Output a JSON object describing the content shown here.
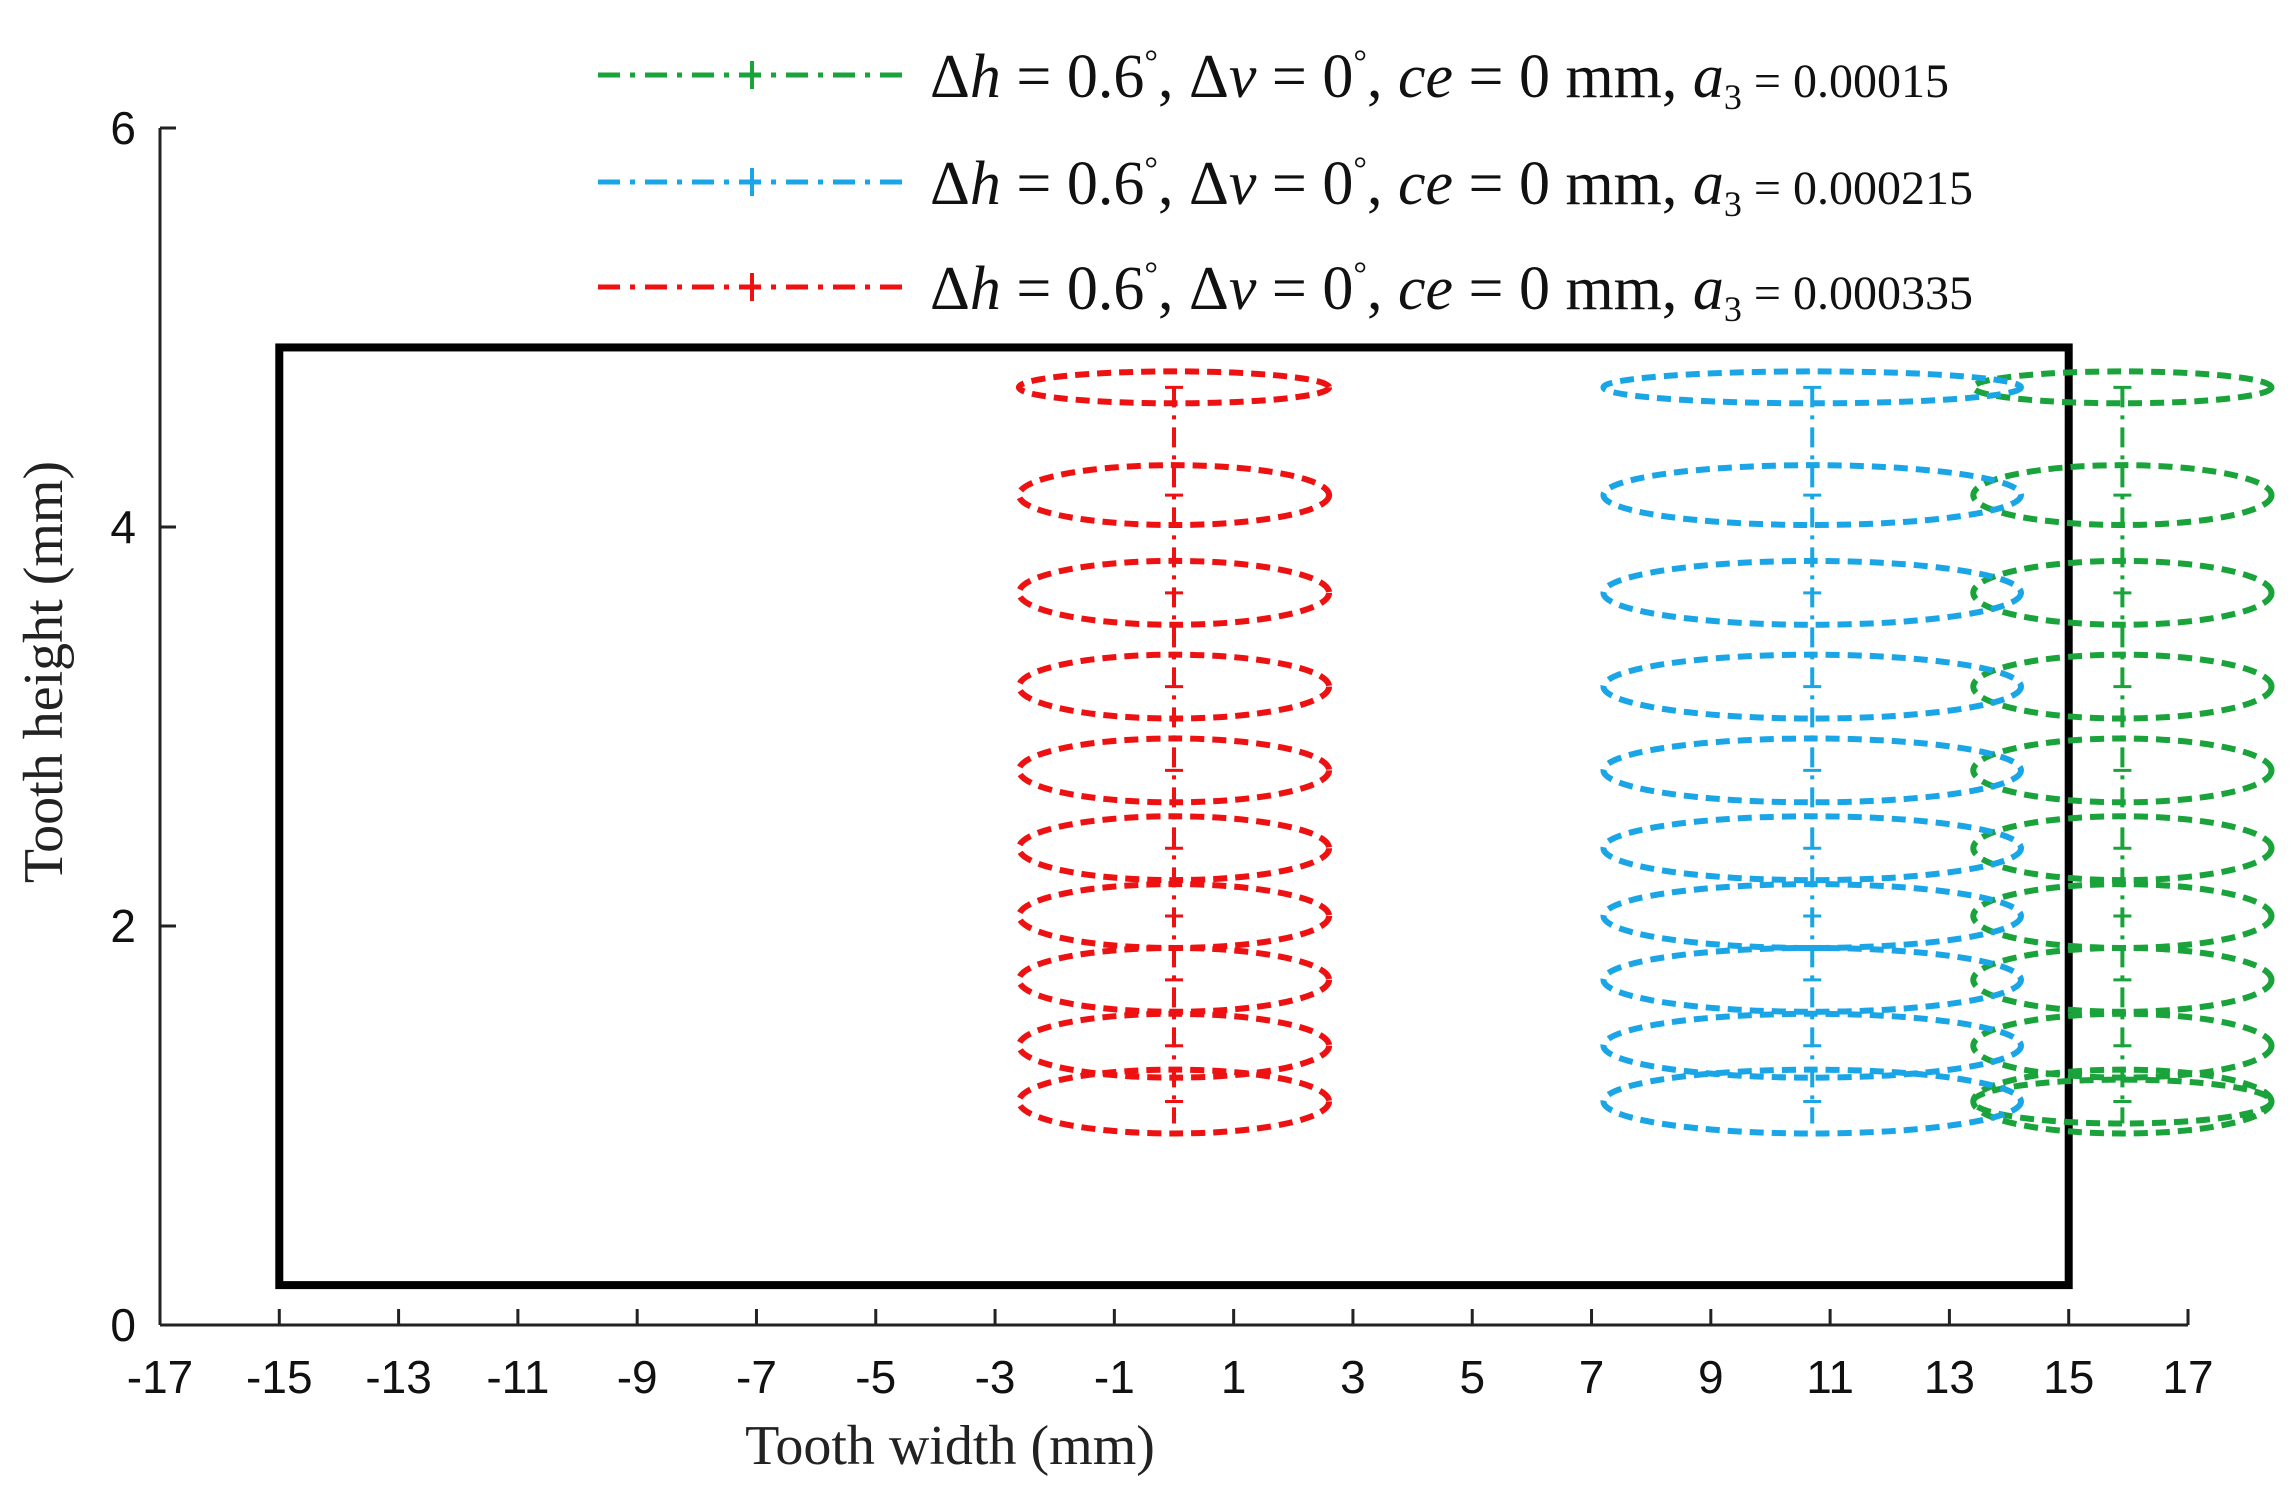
{
  "chart_data": {
    "type": "scatter",
    "title": "",
    "xlabel": "Tooth width (mm)",
    "ylabel": "Tooth height (mm)",
    "xlim": [
      -17,
      17
    ],
    "ylim": [
      0,
      6
    ],
    "x_ticks": [
      "-17",
      "-15",
      "-13",
      "-11",
      "-9",
      "-7",
      "-5",
      "-3",
      "-1",
      "1",
      "3",
      "5",
      "7",
      "9",
      "11",
      "13",
      "15",
      "17"
    ],
    "y_ticks": [
      "0",
      "2",
      "4",
      "6"
    ],
    "tooth_boundary": {
      "x": [
        -15,
        15
      ],
      "y": [
        0.2,
        4.9
      ],
      "color": "#000000"
    },
    "legend_position": "top-right",
    "series": [
      {
        "name": "Δh = 0.6°, Δv = 0°, ce = 0 mm, a3 = 0.00015",
        "legend": {
          "dh": "0.6",
          "dv": "0",
          "ce": "0",
          "a3": "0.00015"
        },
        "color": "#1aa33a",
        "centers_x": [
          15.9,
          15.9,
          15.9,
          15.9,
          15.9,
          15.9,
          15.9,
          15.9,
          15.9,
          15.9,
          15.9
        ],
        "centers_y": [
          4.7,
          4.16,
          3.67,
          3.2,
          2.78,
          2.39,
          2.05,
          1.73,
          1.4,
          1.12,
          1.12
        ],
        "semi_axis_x": [
          2.5,
          2.5,
          2.5,
          2.5,
          2.5,
          2.5,
          2.5,
          2.5,
          2.5,
          2.5,
          2.5
        ],
        "semi_axis_y": [
          0.08,
          0.15,
          0.16,
          0.16,
          0.16,
          0.16,
          0.16,
          0.16,
          0.16,
          0.16,
          0.11
        ]
      },
      {
        "name": "Δh = 0.6°, Δv = 0°, ce = 0 mm, a3 = 0.000215",
        "legend": {
          "dh": "0.6",
          "dv": "0",
          "ce": "0",
          "a3": "0.000215"
        },
        "color": "#1aa6e6",
        "centers_x": [
          10.7,
          10.7,
          10.7,
          10.7,
          10.7,
          10.7,
          10.7,
          10.7,
          10.7,
          10.7
        ],
        "centers_y": [
          4.7,
          4.16,
          3.67,
          3.2,
          2.78,
          2.39,
          2.05,
          1.73,
          1.4,
          1.12
        ],
        "semi_axis_x": [
          3.5,
          3.5,
          3.5,
          3.5,
          3.5,
          3.5,
          3.5,
          3.5,
          3.5,
          3.5
        ],
        "semi_axis_y": [
          0.08,
          0.15,
          0.16,
          0.16,
          0.16,
          0.16,
          0.16,
          0.16,
          0.16,
          0.16
        ]
      },
      {
        "name": "Δh = 0.6°, Δv = 0°, ce = 0 mm, a3 = 0.000335",
        "legend": {
          "dh": "0.6",
          "dv": "0",
          "ce": "0",
          "a3": "0.000335"
        },
        "color": "#ee1111",
        "centers_x": [
          0.0,
          0.0,
          0.0,
          0.0,
          0.0,
          0.0,
          0.0,
          0.0,
          0.0,
          0.0
        ],
        "centers_y": [
          4.7,
          4.16,
          3.67,
          3.2,
          2.78,
          2.39,
          2.05,
          1.73,
          1.4,
          1.12
        ],
        "semi_axis_x": [
          2.6,
          2.6,
          2.6,
          2.6,
          2.6,
          2.6,
          2.6,
          2.6,
          2.6,
          2.6
        ],
        "semi_axis_y": [
          0.08,
          0.15,
          0.16,
          0.16,
          0.16,
          0.16,
          0.16,
          0.16,
          0.16,
          0.16
        ]
      }
    ]
  }
}
